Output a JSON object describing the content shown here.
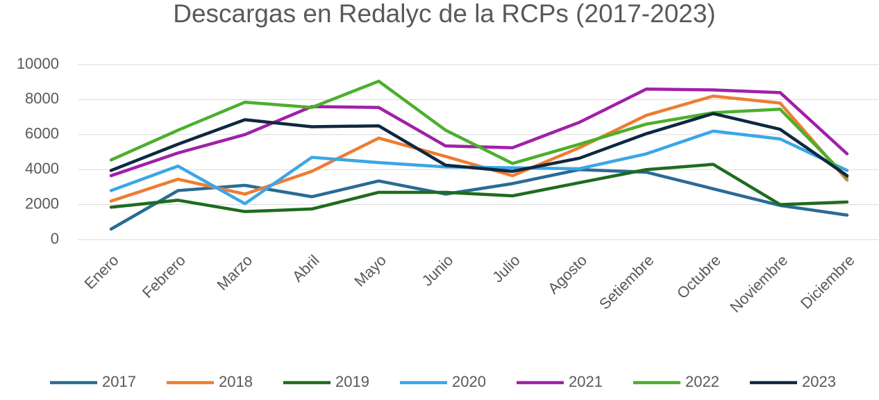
{
  "chart_data": {
    "type": "line",
    "title": "Descargas en Redalyc de la RCPs (2017-2023)",
    "categories": [
      "Enero",
      "Febrero",
      "Marzo",
      "Abril",
      "Mayo",
      "Junio",
      "Julio",
      "Agosto",
      "Setiembre",
      "Octubre",
      "Noviembre",
      "Diciembre"
    ],
    "series": [
      {
        "name": "2017",
        "color": "#2a6b94",
        "values": [
          600,
          2800,
          3100,
          2450,
          3350,
          2600,
          3200,
          4000,
          3850,
          2900,
          1950,
          1400
        ]
      },
      {
        "name": "2018",
        "color": "#ed7d31",
        "values": [
          2200,
          3450,
          2600,
          3900,
          5800,
          4750,
          3650,
          5250,
          7100,
          8200,
          7800,
          3400
        ]
      },
      {
        "name": "2019",
        "color": "#1f6b1f",
        "values": [
          1850,
          2250,
          1600,
          1750,
          2700,
          2700,
          2500,
          3250,
          4000,
          4300,
          2000,
          2150
        ]
      },
      {
        "name": "2020",
        "color": "#3ba6e6",
        "values": [
          2800,
          4200,
          2050,
          4700,
          4400,
          4150,
          4100,
          4050,
          4900,
          6200,
          5750,
          3950
        ]
      },
      {
        "name": "2021",
        "color": "#a020a8",
        "values": [
          3650,
          4950,
          6000,
          7600,
          7550,
          5350,
          5250,
          6700,
          8600,
          8550,
          8400,
          4900
        ]
      },
      {
        "name": "2022",
        "color": "#4caf2c",
        "values": [
          4550,
          6250,
          7850,
          7550,
          9050,
          6250,
          4350,
          5450,
          6600,
          7250,
          7450,
          3550
        ]
      },
      {
        "name": "2023",
        "color": "#0e2841",
        "values": [
          3950,
          5450,
          6850,
          6450,
          6500,
          4250,
          3900,
          4650,
          6050,
          7200,
          6300,
          3650
        ]
      }
    ],
    "ylim": [
      0,
      10000
    ],
    "yticks": [
      0,
      2000,
      4000,
      6000,
      8000,
      10000
    ],
    "grid": true,
    "legend": "bottom"
  }
}
